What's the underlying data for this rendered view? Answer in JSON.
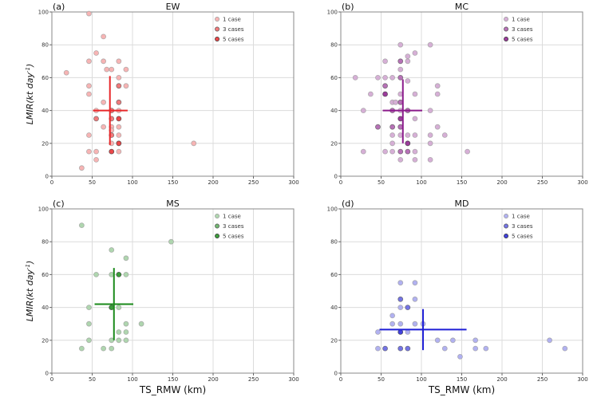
{
  "chart_data": [
    {
      "type": "scatter",
      "panel_label": "(a)",
      "title": "EW",
      "xlabel": "",
      "ylabel": "LMIR(kt day^-1)",
      "xlim": [
        0,
        300
      ],
      "ylim": [
        0,
        100
      ],
      "xticks": [
        0,
        50,
        100,
        150,
        200,
        250,
        300
      ],
      "yticks": [
        0,
        20,
        40,
        60,
        80,
        100
      ],
      "grid": true,
      "color": "#e8282a",
      "legend": {
        "position": "top-right",
        "entries": [
          "1  case",
          "3  cases",
          "5  cases"
        ],
        "counts": [
          1,
          3,
          5
        ]
      },
      "mean_cross": {
        "x": 72,
        "y": 40,
        "x_range": [
          51,
          94
        ],
        "y_range": [
          19,
          61
        ]
      },
      "points": [
        {
          "x": 46,
          "y": 99,
          "n": 1
        },
        {
          "x": 64,
          "y": 85,
          "n": 1
        },
        {
          "x": 55,
          "y": 75,
          "n": 1
        },
        {
          "x": 46,
          "y": 70,
          "n": 1
        },
        {
          "x": 64,
          "y": 70,
          "n": 1
        },
        {
          "x": 83,
          "y": 70,
          "n": 1
        },
        {
          "x": 18,
          "y": 63,
          "n": 1
        },
        {
          "x": 68,
          "y": 65,
          "n": 1
        },
        {
          "x": 74,
          "y": 65,
          "n": 1
        },
        {
          "x": 92,
          "y": 65,
          "n": 1
        },
        {
          "x": 83,
          "y": 60,
          "n": 1
        },
        {
          "x": 46,
          "y": 55,
          "n": 1
        },
        {
          "x": 83,
          "y": 55,
          "n": 3
        },
        {
          "x": 92,
          "y": 55,
          "n": 1
        },
        {
          "x": 46,
          "y": 50,
          "n": 1
        },
        {
          "x": 64,
          "y": 45,
          "n": 1
        },
        {
          "x": 83,
          "y": 45,
          "n": 3
        },
        {
          "x": 55,
          "y": 40,
          "n": 1
        },
        {
          "x": 74,
          "y": 40,
          "n": 3
        },
        {
          "x": 83,
          "y": 40,
          "n": 1
        },
        {
          "x": 55,
          "y": 35,
          "n": 3
        },
        {
          "x": 74,
          "y": 35,
          "n": 3
        },
        {
          "x": 83,
          "y": 35,
          "n": 5
        },
        {
          "x": 64,
          "y": 30,
          "n": 1
        },
        {
          "x": 74,
          "y": 30,
          "n": 1
        },
        {
          "x": 83,
          "y": 30,
          "n": 1
        },
        {
          "x": 74,
          "y": 28,
          "n": 1
        },
        {
          "x": 46,
          "y": 25,
          "n": 1
        },
        {
          "x": 74,
          "y": 25,
          "n": 3
        },
        {
          "x": 83,
          "y": 25,
          "n": 1
        },
        {
          "x": 74,
          "y": 20,
          "n": 1
        },
        {
          "x": 83,
          "y": 20,
          "n": 5
        },
        {
          "x": 176,
          "y": 20,
          "n": 1
        },
        {
          "x": 46,
          "y": 15,
          "n": 1
        },
        {
          "x": 55,
          "y": 15,
          "n": 1
        },
        {
          "x": 74,
          "y": 15,
          "n": 5
        },
        {
          "x": 83,
          "y": 15,
          "n": 1
        },
        {
          "x": 55,
          "y": 10,
          "n": 1
        },
        {
          "x": 37,
          "y": 5,
          "n": 1
        }
      ]
    },
    {
      "type": "scatter",
      "panel_label": "(b)",
      "title": "MC",
      "xlabel": "",
      "ylabel": "",
      "xlim": [
        0,
        300
      ],
      "ylim": [
        0,
        100
      ],
      "xticks": [
        0,
        50,
        100,
        150,
        200,
        250,
        300
      ],
      "yticks": [
        0,
        20,
        40,
        60,
        80,
        100
      ],
      "grid": true,
      "color": "#8b1a8b",
      "legend": {
        "position": "top-right",
        "entries": [
          "1  case",
          "3  cases",
          "5  cases"
        ],
        "counts": [
          1,
          3,
          5
        ]
      },
      "mean_cross": {
        "x": 77,
        "y": 40,
        "x_range": [
          52,
          101
        ],
        "y_range": [
          20,
          59
        ]
      },
      "points": [
        {
          "x": 74,
          "y": 80,
          "n": 1
        },
        {
          "x": 111,
          "y": 80,
          "n": 1
        },
        {
          "x": 92,
          "y": 75,
          "n": 1
        },
        {
          "x": 83,
          "y": 73,
          "n": 1
        },
        {
          "x": 55,
          "y": 70,
          "n": 1
        },
        {
          "x": 74,
          "y": 70,
          "n": 3
        },
        {
          "x": 83,
          "y": 70,
          "n": 1
        },
        {
          "x": 74,
          "y": 65,
          "n": 1
        },
        {
          "x": 18,
          "y": 60,
          "n": 1
        },
        {
          "x": 46,
          "y": 60,
          "n": 1
        },
        {
          "x": 55,
          "y": 60,
          "n": 1
        },
        {
          "x": 64,
          "y": 60,
          "n": 1
        },
        {
          "x": 74,
          "y": 60,
          "n": 3
        },
        {
          "x": 83,
          "y": 58,
          "n": 1
        },
        {
          "x": 55,
          "y": 55,
          "n": 3
        },
        {
          "x": 120,
          "y": 55,
          "n": 1
        },
        {
          "x": 37,
          "y": 50,
          "n": 1
        },
        {
          "x": 55,
          "y": 50,
          "n": 5
        },
        {
          "x": 74,
          "y": 50,
          "n": 1
        },
        {
          "x": 92,
          "y": 50,
          "n": 1
        },
        {
          "x": 120,
          "y": 50,
          "n": 1
        },
        {
          "x": 64,
          "y": 45,
          "n": 1
        },
        {
          "x": 68,
          "y": 45,
          "n": 1
        },
        {
          "x": 74,
          "y": 45,
          "n": 3
        },
        {
          "x": 28,
          "y": 40,
          "n": 1
        },
        {
          "x": 64,
          "y": 40,
          "n": 3
        },
        {
          "x": 74,
          "y": 40,
          "n": 1
        },
        {
          "x": 83,
          "y": 40,
          "n": 3
        },
        {
          "x": 111,
          "y": 40,
          "n": 1
        },
        {
          "x": 74,
          "y": 35,
          "n": 5
        },
        {
          "x": 92,
          "y": 35,
          "n": 1
        },
        {
          "x": 46,
          "y": 30,
          "n": 3
        },
        {
          "x": 64,
          "y": 30,
          "n": 3
        },
        {
          "x": 74,
          "y": 30,
          "n": 3
        },
        {
          "x": 120,
          "y": 30,
          "n": 1
        },
        {
          "x": 64,
          "y": 25,
          "n": 1
        },
        {
          "x": 74,
          "y": 25,
          "n": 1
        },
        {
          "x": 83,
          "y": 25,
          "n": 1
        },
        {
          "x": 92,
          "y": 25,
          "n": 1
        },
        {
          "x": 111,
          "y": 25,
          "n": 1
        },
        {
          "x": 129,
          "y": 25,
          "n": 1
        },
        {
          "x": 64,
          "y": 20,
          "n": 1
        },
        {
          "x": 83,
          "y": 20,
          "n": 5
        },
        {
          "x": 111,
          "y": 20,
          "n": 1
        },
        {
          "x": 28,
          "y": 15,
          "n": 1
        },
        {
          "x": 55,
          "y": 15,
          "n": 1
        },
        {
          "x": 64,
          "y": 15,
          "n": 1
        },
        {
          "x": 74,
          "y": 15,
          "n": 3
        },
        {
          "x": 83,
          "y": 15,
          "n": 3
        },
        {
          "x": 92,
          "y": 15,
          "n": 1
        },
        {
          "x": 157,
          "y": 15,
          "n": 1
        },
        {
          "x": 74,
          "y": 10,
          "n": 1
        },
        {
          "x": 92,
          "y": 10,
          "n": 1
        },
        {
          "x": 111,
          "y": 10,
          "n": 1
        }
      ]
    },
    {
      "type": "scatter",
      "panel_label": "(c)",
      "title": "MS",
      "xlabel": "TS_RMW (km)",
      "ylabel": "LMIR(kt day^-1)",
      "xlim": [
        0,
        300
      ],
      "ylim": [
        0,
        100
      ],
      "xticks": [
        0,
        50,
        100,
        150,
        200,
        250,
        300
      ],
      "yticks": [
        0,
        20,
        40,
        60,
        80,
        100
      ],
      "grid": true,
      "color": "#1a8a1a",
      "legend": {
        "position": "top-right",
        "entries": [
          "1  case",
          "3  cases",
          "5  cases"
        ],
        "counts": [
          1,
          3,
          5
        ]
      },
      "mean_cross": {
        "x": 77,
        "y": 42,
        "x_range": [
          53,
          101
        ],
        "y_range": [
          20,
          64
        ]
      },
      "points": [
        {
          "x": 37,
          "y": 90,
          "n": 1
        },
        {
          "x": 148,
          "y": 80,
          "n": 1
        },
        {
          "x": 74,
          "y": 75,
          "n": 1
        },
        {
          "x": 92,
          "y": 70,
          "n": 1
        },
        {
          "x": 55,
          "y": 60,
          "n": 1
        },
        {
          "x": 74,
          "y": 60,
          "n": 1
        },
        {
          "x": 83,
          "y": 60,
          "n": 5
        },
        {
          "x": 92,
          "y": 60,
          "n": 1
        },
        {
          "x": 46,
          "y": 40,
          "n": 1
        },
        {
          "x": 74,
          "y": 40,
          "n": 5
        },
        {
          "x": 83,
          "y": 40,
          "n": 1
        },
        {
          "x": 46,
          "y": 30,
          "n": 1
        },
        {
          "x": 92,
          "y": 30,
          "n": 1
        },
        {
          "x": 111,
          "y": 30,
          "n": 1
        },
        {
          "x": 83,
          "y": 25,
          "n": 1
        },
        {
          "x": 92,
          "y": 25,
          "n": 1
        },
        {
          "x": 46,
          "y": 20,
          "n": 1
        },
        {
          "x": 74,
          "y": 20,
          "n": 1
        },
        {
          "x": 83,
          "y": 20,
          "n": 1
        },
        {
          "x": 92,
          "y": 20,
          "n": 1
        },
        {
          "x": 37,
          "y": 15,
          "n": 1
        },
        {
          "x": 64,
          "y": 15,
          "n": 1
        },
        {
          "x": 74,
          "y": 15,
          "n": 1
        }
      ]
    },
    {
      "type": "scatter",
      "panel_label": "(d)",
      "title": "MD",
      "xlabel": "TS_RMW (km)",
      "ylabel": "",
      "xlim": [
        0,
        300
      ],
      "ylim": [
        0,
        100
      ],
      "xticks": [
        0,
        50,
        100,
        150,
        200,
        250,
        300
      ],
      "yticks": [
        0,
        20,
        40,
        60,
        80,
        100
      ],
      "grid": true,
      "color": "#1f1fd6",
      "legend": {
        "position": "top-right",
        "entries": [
          "1  case",
          "3  cases",
          "5  cases"
        ],
        "counts": [
          1,
          3,
          5
        ]
      },
      "mean_cross": {
        "x": 102,
        "y": 26.5,
        "x_range": [
          48,
          156
        ],
        "y_range": [
          14,
          39
        ]
      },
      "points": [
        {
          "x": 74,
          "y": 55,
          "n": 1
        },
        {
          "x": 92,
          "y": 55,
          "n": 1
        },
        {
          "x": 74,
          "y": 45,
          "n": 3
        },
        {
          "x": 92,
          "y": 45,
          "n": 1
        },
        {
          "x": 74,
          "y": 40,
          "n": 1
        },
        {
          "x": 83,
          "y": 40,
          "n": 3
        },
        {
          "x": 64,
          "y": 35,
          "n": 1
        },
        {
          "x": 64,
          "y": 30,
          "n": 1
        },
        {
          "x": 74,
          "y": 30,
          "n": 1
        },
        {
          "x": 92,
          "y": 30,
          "n": 1
        },
        {
          "x": 102,
          "y": 30,
          "n": 1
        },
        {
          "x": 46,
          "y": 25,
          "n": 1
        },
        {
          "x": 74,
          "y": 25,
          "n": 5
        },
        {
          "x": 83,
          "y": 25,
          "n": 1
        },
        {
          "x": 120,
          "y": 20,
          "n": 1
        },
        {
          "x": 139,
          "y": 20,
          "n": 1
        },
        {
          "x": 167,
          "y": 20,
          "n": 1
        },
        {
          "x": 259,
          "y": 20,
          "n": 1
        },
        {
          "x": 46,
          "y": 15,
          "n": 1
        },
        {
          "x": 55,
          "y": 15,
          "n": 3
        },
        {
          "x": 74,
          "y": 15,
          "n": 3
        },
        {
          "x": 83,
          "y": 15,
          "n": 3
        },
        {
          "x": 129,
          "y": 15,
          "n": 1
        },
        {
          "x": 167,
          "y": 15,
          "n": 1
        },
        {
          "x": 180,
          "y": 15,
          "n": 1
        },
        {
          "x": 278,
          "y": 15,
          "n": 1
        },
        {
          "x": 148,
          "y": 10,
          "n": 1
        }
      ]
    }
  ]
}
